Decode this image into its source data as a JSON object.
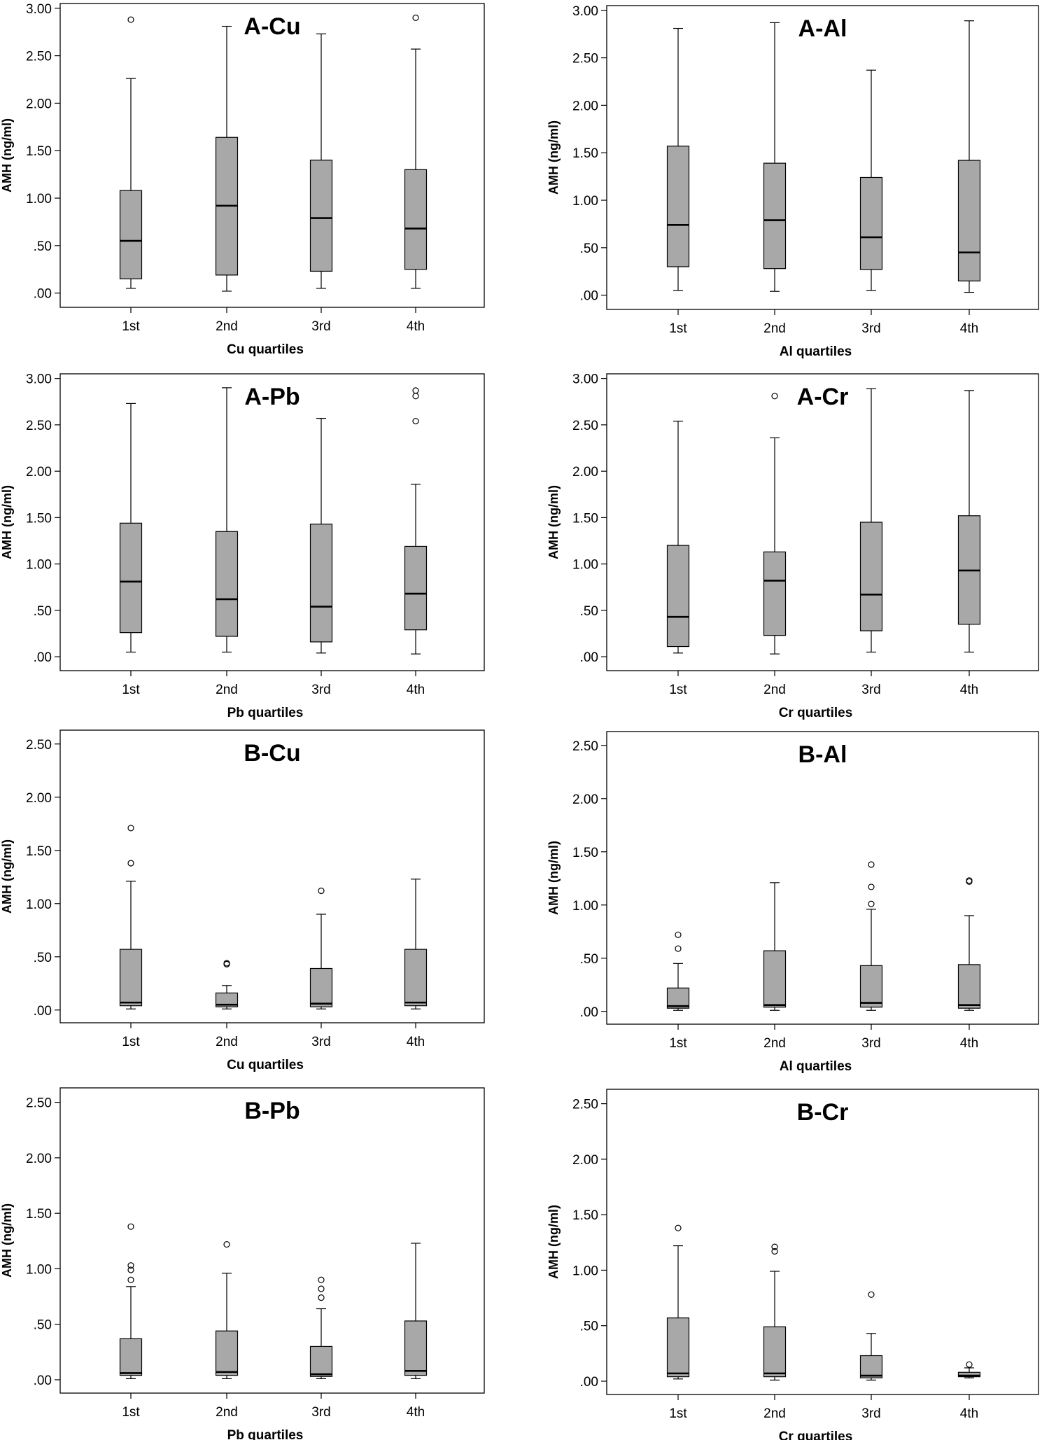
{
  "colors": {
    "box_fill": "#a8a8a8",
    "line": "#000000",
    "outlier": "#000000",
    "background": "#ffffff"
  },
  "chart_data": [
    {
      "type": "boxplot",
      "title": "A-Cu",
      "xlabel": "Cu quartiles",
      "ylabel": "AMH (ng/ml)",
      "ylim": [
        -0.15,
        3.05
      ],
      "yticks": [
        0,
        0.5,
        1.0,
        1.5,
        2.0,
        2.5,
        3.0
      ],
      "ytick_labels": [
        ".00",
        ".50",
        "1.00",
        "1.50",
        "2.00",
        "2.50",
        "3.00"
      ],
      "categories": [
        "1st",
        "2nd",
        "3rd",
        "4th"
      ],
      "boxes": [
        {
          "whisker_low": 0.05,
          "q1": 0.15,
          "median": 0.55,
          "q3": 1.08,
          "whisker_high": 2.26,
          "outliers": [
            2.88
          ]
        },
        {
          "whisker_low": 0.02,
          "q1": 0.19,
          "median": 0.92,
          "q3": 1.64,
          "whisker_high": 2.81,
          "outliers": []
        },
        {
          "whisker_low": 0.05,
          "q1": 0.23,
          "median": 0.79,
          "q3": 1.4,
          "whisker_high": 2.73,
          "outliers": []
        },
        {
          "whisker_low": 0.05,
          "q1": 0.25,
          "median": 0.68,
          "q3": 1.3,
          "whisker_high": 2.57,
          "outliers": [
            2.9
          ]
        }
      ]
    },
    {
      "type": "boxplot",
      "title": "A-Al",
      "xlabel": "Al quartiles",
      "ylabel": "AMH (ng/ml)",
      "ylim": [
        -0.15,
        3.05
      ],
      "yticks": [
        0,
        0.5,
        1.0,
        1.5,
        2.0,
        2.5,
        3.0
      ],
      "ytick_labels": [
        ".00",
        ".50",
        "1.00",
        "1.50",
        "2.00",
        "2.50",
        "3.00"
      ],
      "categories": [
        "1st",
        "2nd",
        "3rd",
        "4th"
      ],
      "boxes": [
        {
          "whisker_low": 0.05,
          "q1": 0.3,
          "median": 0.74,
          "q3": 1.57,
          "whisker_high": 2.81,
          "outliers": []
        },
        {
          "whisker_low": 0.04,
          "q1": 0.28,
          "median": 0.79,
          "q3": 1.39,
          "whisker_high": 2.87,
          "outliers": []
        },
        {
          "whisker_low": 0.05,
          "q1": 0.27,
          "median": 0.61,
          "q3": 1.24,
          "whisker_high": 2.37,
          "outliers": []
        },
        {
          "whisker_low": 0.03,
          "q1": 0.15,
          "median": 0.45,
          "q3": 1.42,
          "whisker_high": 2.89,
          "outliers": []
        }
      ]
    },
    {
      "type": "boxplot",
      "title": "A-Pb",
      "xlabel": "Pb quartiles",
      "ylabel": "AMH (ng/ml)",
      "ylim": [
        -0.15,
        3.05
      ],
      "yticks": [
        0,
        0.5,
        1.0,
        1.5,
        2.0,
        2.5,
        3.0
      ],
      "ytick_labels": [
        ".00",
        ".50",
        "1.00",
        "1.50",
        "2.00",
        "2.50",
        "3.00"
      ],
      "categories": [
        "1st",
        "2nd",
        "3rd",
        "4th"
      ],
      "boxes": [
        {
          "whisker_low": 0.05,
          "q1": 0.26,
          "median": 0.81,
          "q3": 1.44,
          "whisker_high": 2.73,
          "outliers": []
        },
        {
          "whisker_low": 0.05,
          "q1": 0.22,
          "median": 0.62,
          "q3": 1.35,
          "whisker_high": 2.9,
          "outliers": []
        },
        {
          "whisker_low": 0.04,
          "q1": 0.16,
          "median": 0.54,
          "q3": 1.43,
          "whisker_high": 2.57,
          "outliers": []
        },
        {
          "whisker_low": 0.03,
          "q1": 0.29,
          "median": 0.68,
          "q3": 1.19,
          "whisker_high": 1.86,
          "outliers": [
            2.54,
            2.81,
            2.87
          ]
        }
      ]
    },
    {
      "type": "boxplot",
      "title": "A-Cr",
      "xlabel": "Cr quartiles",
      "ylabel": "AMH (ng/ml)",
      "ylim": [
        -0.15,
        3.05
      ],
      "yticks": [
        0,
        0.5,
        1.0,
        1.5,
        2.0,
        2.5,
        3.0
      ],
      "ytick_labels": [
        ".00",
        ".50",
        "1.00",
        "1.50",
        "2.00",
        "2.50",
        "3.00"
      ],
      "categories": [
        "1st",
        "2nd",
        "3rd",
        "4th"
      ],
      "boxes": [
        {
          "whisker_low": 0.04,
          "q1": 0.11,
          "median": 0.43,
          "q3": 1.2,
          "whisker_high": 2.54,
          "outliers": []
        },
        {
          "whisker_low": 0.03,
          "q1": 0.23,
          "median": 0.82,
          "q3": 1.13,
          "whisker_high": 2.36,
          "outliers": [
            2.81
          ]
        },
        {
          "whisker_low": 0.05,
          "q1": 0.28,
          "median": 0.67,
          "q3": 1.45,
          "whisker_high": 2.89,
          "outliers": []
        },
        {
          "whisker_low": 0.05,
          "q1": 0.35,
          "median": 0.93,
          "q3": 1.52,
          "whisker_high": 2.87,
          "outliers": []
        }
      ]
    },
    {
      "type": "boxplot",
      "title": "B-Cu",
      "xlabel": "Cu quartiles",
      "ylabel": "AMH (ng/ml)",
      "ylim": [
        -0.12,
        2.63
      ],
      "yticks": [
        0,
        0.5,
        1.0,
        1.5,
        2.0,
        2.5
      ],
      "ytick_labels": [
        ".00",
        ".50",
        "1.00",
        "1.50",
        "2.00",
        "2.50"
      ],
      "categories": [
        "1st",
        "2nd",
        "3rd",
        "4th"
      ],
      "boxes": [
        {
          "whisker_low": 0.01,
          "q1": 0.04,
          "median": 0.07,
          "q3": 0.57,
          "whisker_high": 1.21,
          "outliers": [
            1.38,
            1.71
          ]
        },
        {
          "whisker_low": 0.01,
          "q1": 0.03,
          "median": 0.05,
          "q3": 0.16,
          "whisker_high": 0.23,
          "outliers": [
            0.43,
            0.44
          ]
        },
        {
          "whisker_low": 0.01,
          "q1": 0.03,
          "median": 0.06,
          "q3": 0.39,
          "whisker_high": 0.9,
          "outliers": [
            1.12
          ]
        },
        {
          "whisker_low": 0.01,
          "q1": 0.04,
          "median": 0.07,
          "q3": 0.57,
          "whisker_high": 1.23,
          "outliers": []
        }
      ]
    },
    {
      "type": "boxplot",
      "title": "B-Al",
      "xlabel": "Al quartiles",
      "ylabel": "AMH (ng/ml)",
      "ylim": [
        -0.12,
        2.63
      ],
      "yticks": [
        0,
        0.5,
        1.0,
        1.5,
        2.0,
        2.5
      ],
      "ytick_labels": [
        ".00",
        ".50",
        "1.00",
        "1.50",
        "2.00",
        "2.50"
      ],
      "categories": [
        "1st",
        "2nd",
        "3rd",
        "4th"
      ],
      "boxes": [
        {
          "whisker_low": 0.01,
          "q1": 0.03,
          "median": 0.05,
          "q3": 0.22,
          "whisker_high": 0.45,
          "outliers": [
            0.59,
            0.72
          ]
        },
        {
          "whisker_low": 0.01,
          "q1": 0.04,
          "median": 0.06,
          "q3": 0.57,
          "whisker_high": 1.21,
          "outliers": []
        },
        {
          "whisker_low": 0.01,
          "q1": 0.04,
          "median": 0.08,
          "q3": 0.43,
          "whisker_high": 0.96,
          "outliers": [
            1.01,
            1.17,
            1.38
          ]
        },
        {
          "whisker_low": 0.01,
          "q1": 0.03,
          "median": 0.06,
          "q3": 0.44,
          "whisker_high": 0.9,
          "outliers": [
            1.22,
            1.23
          ]
        }
      ]
    },
    {
      "type": "boxplot",
      "title": "B-Pb",
      "xlabel": "Pb quartiles",
      "ylabel": "AMH (ng/ml)",
      "ylim": [
        -0.12,
        2.63
      ],
      "yticks": [
        0,
        0.5,
        1.0,
        1.5,
        2.0,
        2.5
      ],
      "ytick_labels": [
        ".00",
        ".50",
        "1.00",
        "1.50",
        "2.00",
        "2.50"
      ],
      "categories": [
        "1st",
        "2nd",
        "3rd",
        "4th"
      ],
      "boxes": [
        {
          "whisker_low": 0.01,
          "q1": 0.04,
          "median": 0.06,
          "q3": 0.37,
          "whisker_high": 0.84,
          "outliers": [
            0.9,
            0.99,
            1.03,
            1.38
          ]
        },
        {
          "whisker_low": 0.01,
          "q1": 0.04,
          "median": 0.07,
          "q3": 0.44,
          "whisker_high": 0.96,
          "outliers": [
            1.22
          ]
        },
        {
          "whisker_low": 0.01,
          "q1": 0.03,
          "median": 0.05,
          "q3": 0.3,
          "whisker_high": 0.64,
          "outliers": [
            0.74,
            0.82,
            0.9
          ]
        },
        {
          "whisker_low": 0.01,
          "q1": 0.04,
          "median": 0.08,
          "q3": 0.53,
          "whisker_high": 1.23,
          "outliers": []
        }
      ]
    },
    {
      "type": "boxplot",
      "title": "B-Cr",
      "xlabel": "Cr quartiles",
      "ylabel": "AMH (ng/ml)",
      "ylim": [
        -0.12,
        2.63
      ],
      "yticks": [
        0,
        0.5,
        1.0,
        1.5,
        2.0,
        2.5
      ],
      "ytick_labels": [
        ".00",
        ".50",
        "1.00",
        "1.50",
        "2.00",
        "2.50"
      ],
      "categories": [
        "1st",
        "2nd",
        "3rd",
        "4th"
      ],
      "boxes": [
        {
          "whisker_low": 0.02,
          "q1": 0.04,
          "median": 0.07,
          "q3": 0.57,
          "whisker_high": 1.22,
          "outliers": [
            1.38
          ]
        },
        {
          "whisker_low": 0.01,
          "q1": 0.04,
          "median": 0.07,
          "q3": 0.49,
          "whisker_high": 0.99,
          "outliers": [
            1.17,
            1.21
          ]
        },
        {
          "whisker_low": 0.01,
          "q1": 0.03,
          "median": 0.05,
          "q3": 0.23,
          "whisker_high": 0.43,
          "outliers": [
            0.78
          ]
        },
        {
          "whisker_low": 0.03,
          "q1": 0.04,
          "median": 0.05,
          "q3": 0.08,
          "whisker_high": 0.12,
          "outliers": [
            0.15
          ]
        }
      ]
    }
  ]
}
